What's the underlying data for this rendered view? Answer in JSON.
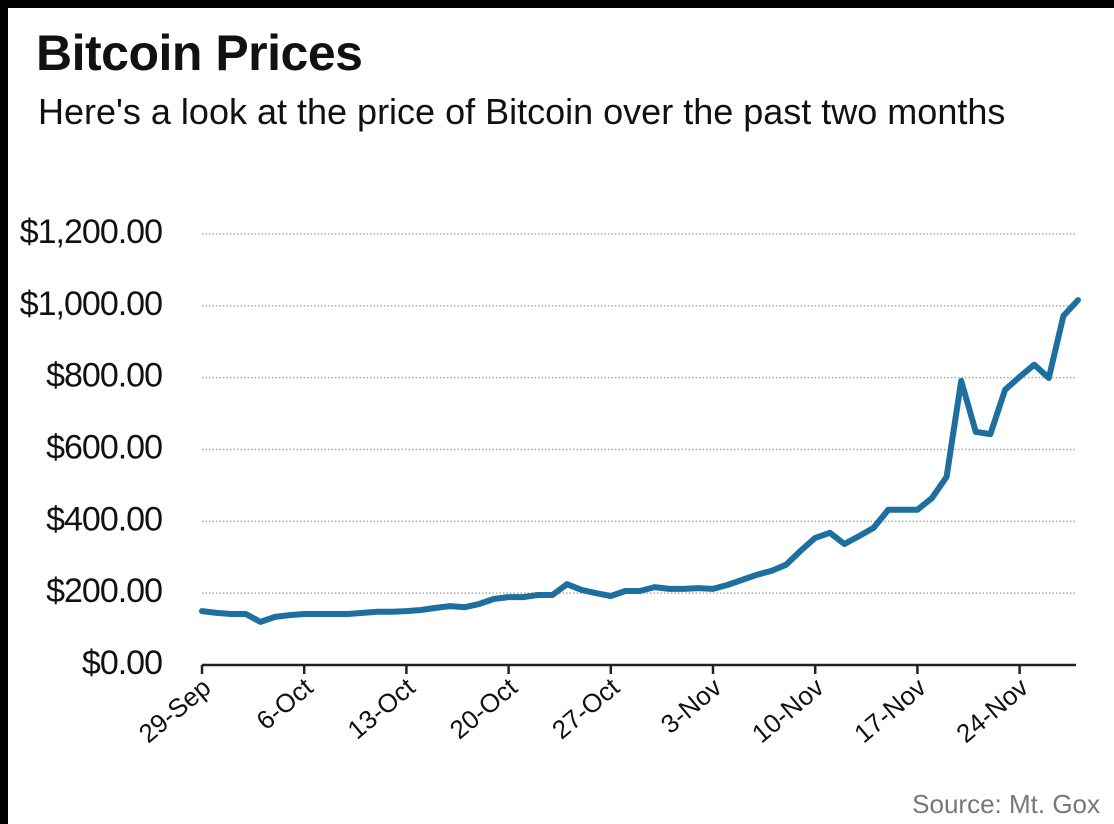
{
  "chart_data": {
    "type": "line",
    "title": "Bitcoin Prices",
    "subtitle": "Here's a look at the price of Bitcoin over the past two months",
    "source": "Source: Mt. Gox",
    "categories": [
      "29-Sep",
      null,
      null,
      null,
      null,
      null,
      null,
      "6-Oct",
      null,
      null,
      null,
      null,
      null,
      null,
      "13-Oct",
      null,
      null,
      null,
      null,
      null,
      null,
      "20-Oct",
      null,
      null,
      null,
      null,
      null,
      null,
      "27-Oct",
      null,
      null,
      null,
      null,
      null,
      null,
      "3-Nov",
      null,
      null,
      null,
      null,
      null,
      null,
      "10-Nov",
      null,
      null,
      null,
      null,
      null,
      null,
      "17-Nov",
      null,
      null,
      null,
      null,
      null,
      null,
      "24-Nov",
      null,
      null,
      null,
      null
    ],
    "series": [
      {
        "name": "Bitcoin price",
        "color": "#1c6f9e",
        "values": [
          150,
          145,
          142,
          142,
          120,
          134,
          139,
          142,
          142,
          142,
          142,
          145,
          148,
          148,
          150,
          153,
          159,
          164,
          161,
          170,
          184,
          189,
          189,
          195,
          195,
          225,
          209,
          200,
          192,
          206,
          206,
          217,
          212,
          212,
          214,
          212,
          223,
          237,
          251,
          262,
          279,
          318,
          354,
          368,
          337,
          359,
          382,
          432,
          432,
          432,
          465,
          524,
          791,
          649,
          643,
          766,
          802,
          836,
          799,
          972,
          1016
        ]
      }
    ],
    "ylim": [
      0,
      1200
    ],
    "yticks": [
      {
        "value": 0,
        "label": "$0.00"
      },
      {
        "value": 200,
        "label": "$200.00"
      },
      {
        "value": 400,
        "label": "$400.00"
      },
      {
        "value": 600,
        "label": "$600.00"
      },
      {
        "value": 800,
        "label": "$800.00"
      },
      {
        "value": 1000,
        "label": "$1,000.00"
      },
      {
        "value": 1200,
        "label": "$1,200.00"
      }
    ],
    "grid": true
  }
}
